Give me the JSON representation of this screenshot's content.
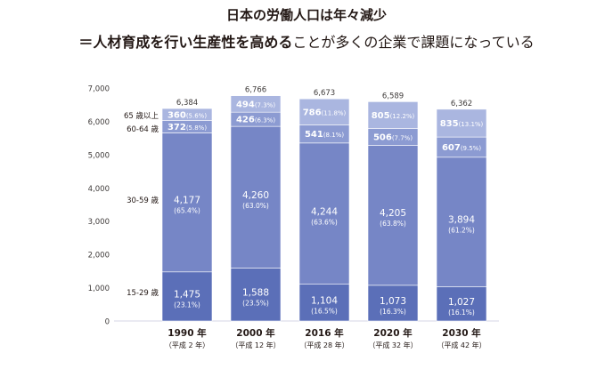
{
  "title": "日本の労働人口は年々減少",
  "subtitle_bold": "＝人材育成を行い生産性を高める",
  "subtitle_rest": "ことが多くの企業で課題になっている",
  "chart_data": {
    "type": "bar",
    "stacked": true,
    "categories": [
      "1990 年",
      "2000 年",
      "2016 年",
      "2020 年",
      "2030 年"
    ],
    "sublabels": [
      "（平成 2 年）",
      "（平成 12 年）",
      "（平成 28 年）",
      "（平成 32 年）",
      "（平成 42 年）"
    ],
    "totals": [
      "6,384",
      "6,766",
      "6,673",
      "6,589",
      "6,362"
    ],
    "ylim": [
      0,
      7000
    ],
    "yticks": [
      0,
      1000,
      2000,
      3000,
      4000,
      5000,
      6000,
      7000
    ],
    "ytick_labels": [
      "0",
      "1,000",
      "2,000",
      "3,000",
      "4,000",
      "5,000",
      "6,000",
      "7,000"
    ],
    "series": [
      {
        "name": "15-29 歳",
        "color": "#5b6fb8",
        "values": [
          1475,
          1588,
          1104,
          1073,
          1027
        ],
        "value_labels": [
          "1,475",
          "1,588",
          "1,104",
          "1,073",
          "1,027"
        ],
        "pct_labels": [
          "(23.1%)",
          "(23.5%)",
          "(16.5%)",
          "(16.3%)",
          "(16.1%)"
        ]
      },
      {
        "name": "30-59 歳",
        "color": "#7686c6",
        "values": [
          4177,
          4260,
          4244,
          4205,
          3894
        ],
        "value_labels": [
          "4,177",
          "4,260",
          "4,244",
          "4,205",
          "3,894"
        ],
        "pct_labels": [
          "(65.4%)",
          "(63.0%)",
          "(63.6%)",
          "(63.8%)",
          "(61.2%)"
        ]
      },
      {
        "name": "60-64 歳",
        "color": "#8c9bd2",
        "values": [
          372,
          426,
          541,
          506,
          607
        ],
        "value_labels": [
          "372",
          "426",
          "541",
          "506",
          "607"
        ],
        "pct_labels": [
          "(5.8%)",
          "(6.3%)",
          "(8.1%)",
          "(7.7%)",
          "(9.5%)"
        ]
      },
      {
        "name": "65 歳以上",
        "color": "#aab6e0",
        "values": [
          360,
          494,
          786,
          805,
          835
        ],
        "value_labels": [
          "360",
          "494",
          "786",
          "805",
          "835"
        ],
        "pct_labels": [
          "(5.6%)",
          "(7.3%)",
          "(11.8%)",
          "(12.2%)",
          "(13.1%)"
        ]
      }
    ],
    "legend_placement": "left-inline",
    "grid": false
  }
}
